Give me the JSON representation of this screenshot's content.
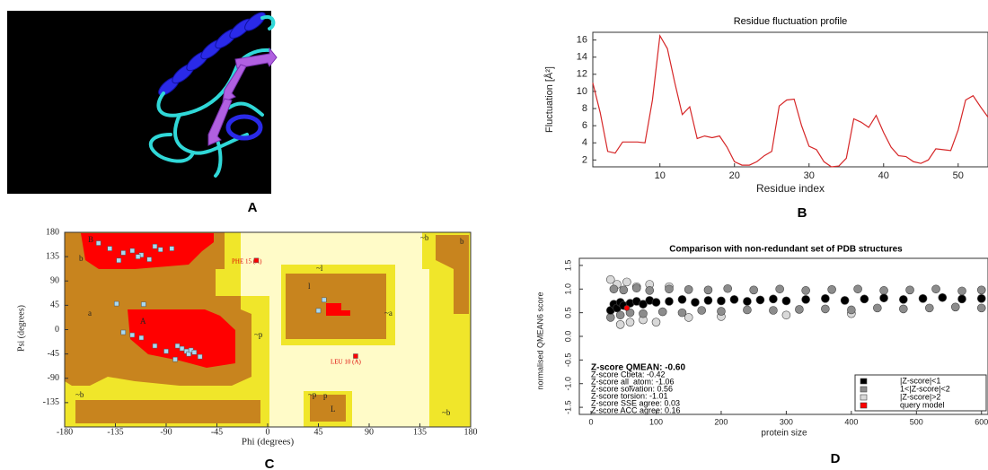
{
  "figure": {
    "panel_a_label": "A"
  },
  "chart_data": [
    {
      "type": "line",
      "panel_label": "B",
      "title": "Residue fluctuation profile",
      "x_label": "Residue index",
      "y_label": "Fluctuation [Å²]",
      "x": [
        1,
        2,
        3,
        4,
        5,
        6,
        7,
        8,
        9,
        10,
        11,
        12,
        13,
        14,
        15,
        16,
        17,
        18,
        19,
        20,
        21,
        22,
        23,
        24,
        25,
        26,
        27,
        28,
        29,
        30,
        31,
        32,
        33,
        34,
        35,
        36,
        37,
        38,
        39,
        40,
        41,
        42,
        43,
        44,
        45,
        46,
        47,
        48,
        49,
        50,
        51,
        52,
        53,
        54
      ],
      "series": [
        {
          "color": "#d62728",
          "values": [
            11,
            7.5,
            3,
            2.8,
            4.1,
            4.1,
            4.1,
            4,
            9,
            16.5,
            15,
            11,
            7.3,
            8.2,
            4.5,
            4.8,
            4.6,
            4.8,
            3.5,
            1.8,
            1.4,
            1.4,
            1.8,
            2.5,
            3,
            8.3,
            9,
            9.1,
            6,
            3.6,
            3.2,
            1.8,
            1.2,
            1.3,
            2.2,
            6.8,
            6.4,
            5.8,
            7.2,
            5.2,
            3.5,
            2.5,
            2.4,
            1.8,
            1.6,
            2,
            3.3,
            3.2,
            3.1,
            5.5,
            9,
            9.5,
            8.2,
            7
          ]
        }
      ],
      "xlim": [
        1,
        54
      ],
      "ylim": [
        1.2,
        16.9
      ],
      "xticks": [
        10,
        20,
        30,
        40,
        50
      ],
      "yticks": [
        2,
        4,
        6,
        8,
        10,
        12,
        14,
        16
      ]
    },
    {
      "type": "scatter",
      "panel_label": "C",
      "x_label": "Phi (degrees)",
      "y_label": "Psi (degrees)",
      "series": [
        {
          "color": "#a8d8f0",
          "x": [
            -150,
            -140,
            -128,
            -120,
            -112,
            -100,
            -95,
            -85,
            -132,
            -115,
            -105,
            -134,
            -110,
            -120,
            -100,
            -90,
            -80,
            -76,
            -72,
            -70,
            -68,
            -65,
            -82,
            -60,
            -112,
            -128,
            50,
            45
          ],
          "values": [
            160,
            150,
            142,
            146,
            138,
            154,
            148,
            150,
            128,
            135,
            130,
            48,
            47,
            -10,
            -30,
            -40,
            -30,
            -35,
            -40,
            -45,
            -38,
            -42,
            -55,
            -50,
            -15,
            -5,
            55,
            35
          ]
        },
        {
          "color": "#ff0000",
          "x": [
            -10,
            78
          ],
          "values": [
            128,
            -49
          ]
        }
      ],
      "annotations": [
        "PHE 15 (A)",
        "LEU 10 (A)"
      ],
      "region_labels": [
        "B",
        "b",
        "a",
        "A",
        "~b",
        "~l",
        "l",
        "~a",
        "~p",
        "p",
        "L",
        "~b",
        "~b",
        "b",
        "~p"
      ],
      "xlim": [
        -180,
        180
      ],
      "ylim": [
        -180,
        180
      ],
      "xticks": [
        -180,
        -135,
        -90,
        -45,
        0,
        45,
        90,
        135,
        180
      ],
      "yticks": [
        -135,
        -90,
        -45,
        0,
        45,
        90,
        135,
        180
      ]
    },
    {
      "type": "scatter",
      "panel_label": "D",
      "title": "Comparison with non-redundant set of PDB structures",
      "x_label": "protein size",
      "y_label": "normalised QMEAN6 score",
      "z_scores": [
        "Z-score QMEAN: -0.60",
        "Z-score Cbeta: -0.42",
        "Z-score all_atom: -1.06",
        "Z-score solvation: 0.56",
        "Z-score torsion: -1.01",
        "Z-score SSE agree: 0.03",
        "Z-score ACC agree: 0.16"
      ],
      "series": [
        {
          "name": "|Z-score|>2",
          "color": "#d9d9d9",
          "x": [
            30,
            40,
            55,
            70,
            90,
            120,
            45,
            60,
            80,
            100,
            150,
            200,
            300,
            400
          ],
          "values": [
            1.2,
            1.1,
            1.15,
            1.05,
            1.1,
            1.05,
            0.25,
            0.3,
            0.35,
            0.3,
            0.4,
            0.42,
            0.45,
            0.48
          ]
        },
        {
          "name": "1<|Z-score|<2",
          "color": "#8c8c8c",
          "x": [
            35,
            50,
            70,
            90,
            120,
            150,
            180,
            210,
            250,
            290,
            330,
            370,
            410,
            450,
            490,
            530,
            570,
            600,
            30,
            45,
            60,
            80,
            110,
            140,
            170,
            200,
            240,
            280,
            320,
            360,
            400,
            440,
            480,
            520,
            560,
            600
          ],
          "values": [
            1.0,
            0.98,
            1.02,
            0.97,
            1.0,
            0.99,
            0.98,
            1.01,
            0.98,
            1.0,
            0.97,
            0.99,
            1.0,
            0.97,
            0.98,
            1.0,
            0.96,
            0.98,
            0.4,
            0.45,
            0.5,
            0.48,
            0.52,
            0.5,
            0.55,
            0.53,
            0.56,
            0.55,
            0.57,
            0.58,
            0.56,
            0.6,
            0.58,
            0.6,
            0.62,
            0.6
          ]
        },
        {
          "name": "|Z-score|<1",
          "color": "#000000",
          "x": [
            30,
            35,
            40,
            45,
            50,
            60,
            70,
            80,
            90,
            100,
            120,
            140,
            160,
            180,
            200,
            220,
            240,
            260,
            280,
            300,
            330,
            360,
            390,
            420,
            450,
            480,
            510,
            540,
            570,
            600
          ],
          "values": [
            0.55,
            0.68,
            0.6,
            0.72,
            0.65,
            0.7,
            0.74,
            0.68,
            0.76,
            0.72,
            0.74,
            0.78,
            0.72,
            0.76,
            0.75,
            0.78,
            0.74,
            0.77,
            0.79,
            0.75,
            0.78,
            0.8,
            0.76,
            0.79,
            0.81,
            0.78,
            0.8,
            0.82,
            0.79,
            0.8
          ]
        },
        {
          "name": "query model",
          "color": "#ff0000",
          "x": [
            55
          ],
          "values": [
            0.6
          ]
        }
      ],
      "legend_order": [
        2,
        1,
        0,
        3
      ],
      "xlim": [
        -18,
        610
      ],
      "ylim": [
        -1.65,
        1.65
      ],
      "xticks": [
        0,
        100,
        200,
        300,
        400,
        500,
        600
      ],
      "yticks": [
        -1.5,
        {
          "value": -1,
          "label": "-1.0"
        },
        -0.5,
        {
          "value": 0,
          "label": "0.0"
        },
        0.5,
        {
          "value": 1,
          "label": "1.0"
        },
        1.5
      ]
    }
  ]
}
